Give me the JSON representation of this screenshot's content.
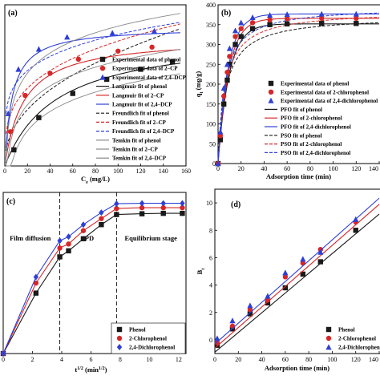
{
  "colors": {
    "phenol": "#1a1a1a",
    "cp": "#d62728",
    "dcp": "#2f3fd6",
    "gray": "#888888"
  },
  "chart_data": [
    {
      "panel": "(a)",
      "type": "scatter",
      "xlabel": "C",
      "xlabel_sub": "e",
      "xlabel_unit": " (mg/L)",
      "xlim": [
        0,
        160
      ],
      "xticks": [
        0,
        20,
        40,
        60,
        80,
        100,
        120,
        140,
        160
      ],
      "ylim": [
        0,
        400
      ],
      "series": [
        {
          "key": "phenol",
          "marker": "square",
          "x": [
            8,
            30,
            60,
            90,
            120,
            148
          ],
          "y": [
            40,
            120,
            180,
            215,
            240,
            258
          ]
        },
        {
          "key": "cp",
          "marker": "circle",
          "x": [
            5,
            18,
            40,
            65,
            100,
            130
          ],
          "y": [
            85,
            175,
            230,
            265,
            285,
            295
          ]
        },
        {
          "key": "dcp",
          "marker": "triangle",
          "x": [
            3,
            12,
            30,
            55,
            95,
            132
          ],
          "y": [
            130,
            240,
            290,
            320,
            330,
            335
          ]
        }
      ],
      "legend": [
        "Experimental data of phenol",
        "Experimental data of 2–CP",
        "Experimental data of 2,4–DCP",
        "Langmuir fit of phenol",
        "Langmuir fit of 2–CP",
        "Langmuir fit of 2,4–DCP",
        "Freundlich fit of phenol",
        "Freundlich fit of 2–CP",
        "Freundlich fit of 2,4–DCP",
        "Temkin fit of phenol",
        "Temkin fit of 2–CP",
        "Temkin fit of 2,4–DCP"
      ]
    },
    {
      "panel": "(b)",
      "type": "scatter",
      "xlabel": "Adsorption time (min)",
      "ylabel": "q",
      "ylabel_sub": "t",
      "ylabel_unit": " (mg/g)",
      "xlim": [
        0,
        140
      ],
      "xticks": [
        0,
        20,
        40,
        60,
        80,
        100,
        120,
        140
      ],
      "ylim": [
        0,
        400
      ],
      "yticks": [
        0,
        50,
        100,
        150,
        200,
        250,
        300,
        350,
        400
      ],
      "series": [
        {
          "key": "phenol",
          "marker": "square",
          "x": [
            0,
            2,
            5,
            8,
            10,
            15,
            20,
            30,
            45,
            60,
            90,
            120
          ],
          "y": [
            0,
            60,
            150,
            210,
            250,
            300,
            320,
            340,
            350,
            352,
            353,
            353
          ]
        },
        {
          "key": "cp",
          "marker": "circle",
          "x": [
            0,
            2,
            5,
            8,
            10,
            15,
            20,
            30,
            45,
            60,
            90,
            120
          ],
          "y": [
            0,
            70,
            170,
            230,
            270,
            320,
            340,
            355,
            362,
            365,
            366,
            366
          ]
        },
        {
          "key": "dcp",
          "marker": "triangle",
          "x": [
            0,
            2,
            5,
            8,
            10,
            15,
            20,
            30,
            45,
            60,
            90,
            120
          ],
          "y": [
            0,
            80,
            190,
            250,
            290,
            335,
            355,
            368,
            374,
            376,
            377,
            377
          ]
        }
      ],
      "legend": [
        "Experimental data of phenol",
        "Experimental data of 2-chlorophenol",
        "Experimental data of 2,4-dichlorophenol",
        "PFO fit of phenol",
        "PFO fit of 2-chlorophenol",
        "PFO fit of 2,4-dichlorophenol",
        "PSO fit of phenol",
        "PSO fit of 2-chlorophenol",
        "PSO fit of 2,4-dichlorophenol"
      ]
    },
    {
      "panel": "(c)",
      "type": "line",
      "xlabel": "t",
      "xlabel_sup": "1/2",
      "xlabel_unit": " (min",
      "xlabel_sup2": "1/2",
      "xlabel_close": ")",
      "xlim": [
        0,
        12.5
      ],
      "xticks": [
        0,
        2,
        4,
        6,
        8,
        10,
        12
      ],
      "ylim": [
        0,
        400
      ],
      "vlines": [
        3.87,
        7.75
      ],
      "annotations": [
        "Film diffusion",
        "IPD",
        "Equilibrium stage"
      ],
      "series": [
        {
          "key": "phenol",
          "marker": "square",
          "x": [
            0,
            2.24,
            3.87,
            4.47,
            5.48,
            6.71,
            7.75,
            9.49,
            10.95,
            12.25
          ],
          "y": [
            0,
            150,
            240,
            255,
            285,
            320,
            345,
            347,
            348,
            348
          ]
        },
        {
          "key": "cp",
          "marker": "circle",
          "x": [
            0,
            2.24,
            3.87,
            4.47,
            5.48,
            6.71,
            7.75,
            9.49,
            10.95,
            12.25
          ],
          "y": [
            0,
            175,
            262,
            272,
            305,
            335,
            360,
            362,
            362,
            362
          ]
        },
        {
          "key": "dcp",
          "marker": "diamond",
          "x": [
            0,
            2.24,
            3.87,
            4.47,
            5.48,
            6.71,
            7.75,
            9.49,
            10.95,
            12.25
          ],
          "y": [
            0,
            190,
            280,
            290,
            320,
            350,
            372,
            373,
            373,
            373
          ]
        }
      ],
      "legend": [
        "Phenol",
        "2-Chlorophenol",
        "2,4-Dichlorophenol"
      ]
    },
    {
      "panel": "(d)",
      "type": "scatter",
      "xlabel": "Adsorption time (min)",
      "ylabel": "B",
      "ylabel_sub": "t",
      "xlim": [
        0,
        140
      ],
      "xticks": [
        0,
        20,
        40,
        60,
        80,
        100,
        120,
        140
      ],
      "ylim": [
        -1,
        11
      ],
      "yticks": [
        0,
        2,
        4,
        6,
        8,
        10
      ],
      "series": [
        {
          "key": "phenol",
          "marker": "square",
          "x": [
            2,
            15,
            30,
            45,
            60,
            75,
            90,
            120
          ],
          "y": [
            -0.4,
            0.8,
            1.9,
            2.7,
            3.8,
            4.8,
            5.7,
            8.0
          ],
          "fit": [
            -0.9,
            0.072
          ]
        },
        {
          "key": "cp",
          "marker": "circle",
          "x": [
            2,
            15,
            30,
            45,
            60,
            75,
            90,
            120
          ],
          "y": [
            -0.2,
            1.0,
            2.2,
            2.9,
            4.6,
            5.6,
            6.6,
            8.6
          ],
          "fit": [
            -0.6,
            0.075
          ]
        },
        {
          "key": "dcp",
          "marker": "triangle",
          "x": [
            2,
            15,
            30,
            45,
            60,
            75,
            90,
            120
          ],
          "y": [
            0.1,
            1.4,
            2.5,
            3.2,
            4.9,
            5.9,
            6.4,
            8.8
          ],
          "fit": [
            -0.3,
            0.076
          ]
        }
      ],
      "legend": [
        "Phenol",
        "2-Chlorophenol",
        "2,4-Dichlorophenol"
      ]
    }
  ]
}
